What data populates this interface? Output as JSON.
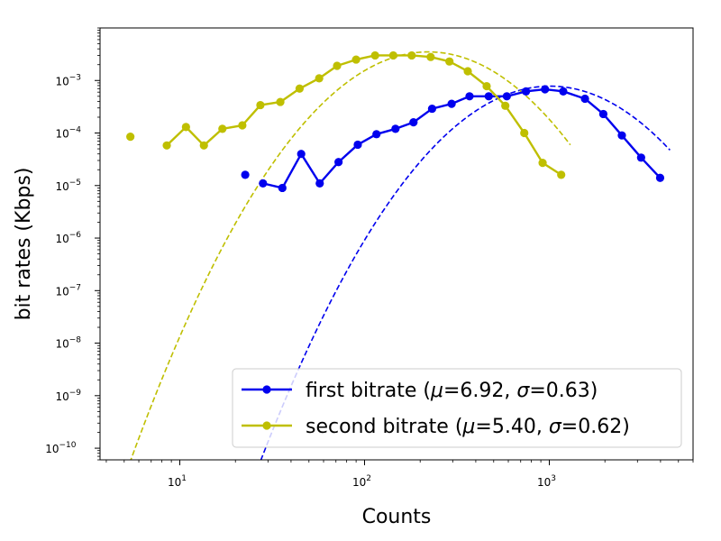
{
  "chart_data": {
    "type": "line",
    "xlabel": "Counts",
    "ylabel": "bit rates (Kbps)",
    "xscale": "log",
    "yscale": "log",
    "xlim": [
      3.7,
      6000
    ],
    "ylim": [
      6e-11,
      0.01
    ],
    "xticks": [
      {
        "value": 10,
        "base": "10",
        "exp": "1"
      },
      {
        "value": 100,
        "base": "10",
        "exp": "2"
      },
      {
        "value": 1000,
        "base": "10",
        "exp": "3"
      }
    ],
    "yticks": [
      {
        "value": 1e-10,
        "base": "10",
        "exp": "−10"
      },
      {
        "value": 1e-09,
        "base": "10",
        "exp": "−9"
      },
      {
        "value": 1e-08,
        "base": "10",
        "exp": "−8"
      },
      {
        "value": 1e-07,
        "base": "10",
        "exp": "−7"
      },
      {
        "value": 1e-06,
        "base": "10",
        "exp": "−6"
      },
      {
        "value": 1e-05,
        "base": "10",
        "exp": "−5"
      },
      {
        "value": 0.0001,
        "base": "10",
        "exp": "−4"
      },
      {
        "value": 0.001,
        "base": "10",
        "exp": "−3"
      }
    ],
    "grid": false,
    "legend_position": "lower-right",
    "series": [
      {
        "name": "first bitrate",
        "legend_prefix": "first bitrate (",
        "mu_text": "=6.92, ",
        "sigma_text": "=0.63)",
        "color": "#0000ee",
        "points": [
          {
            "x": 22.6,
            "y": 1.6e-05
          },
          {
            "x": 28.2,
            "y": 1.1e-05
          },
          {
            "x": 35.9,
            "y": 9e-06
          },
          {
            "x": 45.4,
            "y": 4e-05
          },
          {
            "x": 57.2,
            "y": 1.1e-05
          },
          {
            "x": 72.3,
            "y": 2.8e-05
          },
          {
            "x": 91.9,
            "y": 6e-05
          },
          {
            "x": 116,
            "y": 9.5e-05
          },
          {
            "x": 147,
            "y": 0.00012
          },
          {
            "x": 184,
            "y": 0.00016
          },
          {
            "x": 232,
            "y": 0.00029
          },
          {
            "x": 296,
            "y": 0.00036
          },
          {
            "x": 370,
            "y": 0.0005
          },
          {
            "x": 470,
            "y": 0.0005
          },
          {
            "x": 589,
            "y": 0.0005
          },
          {
            "x": 748,
            "y": 0.00062
          },
          {
            "x": 948,
            "y": 0.00068
          },
          {
            "x": 1190,
            "y": 0.00062
          },
          {
            "x": 1560,
            "y": 0.00045
          },
          {
            "x": 1960,
            "y": 0.00023
          },
          {
            "x": 2470,
            "y": 9e-05
          },
          {
            "x": 3140,
            "y": 3.4e-05
          },
          {
            "x": 3980,
            "y": 1.4e-05
          }
        ],
        "fit": {
          "mu": 6.92,
          "sigma": 0.63,
          "x_range": [
            20,
            4500
          ],
          "peak_y": 0.00078
        }
      },
      {
        "name": "second bitrate",
        "legend_prefix": "second bitrate (",
        "mu_text": "=5.40, ",
        "sigma_text": "=0.62)",
        "color": "#bfbf00",
        "points": [
          {
            "x": 5.4,
            "y": 8.5e-05
          },
          {
            "x": 8.5,
            "y": 5.8e-05
          },
          {
            "x": 10.8,
            "y": 0.00013
          },
          {
            "x": 13.5,
            "y": 5.8e-05
          },
          {
            "x": 17.0,
            "y": 0.00012
          },
          {
            "x": 21.8,
            "y": 0.00014
          },
          {
            "x": 27.3,
            "y": 0.00034
          },
          {
            "x": 35.0,
            "y": 0.00039
          },
          {
            "x": 44.5,
            "y": 0.0007
          },
          {
            "x": 56.8,
            "y": 0.0011
          },
          {
            "x": 71.0,
            "y": 0.0019
          },
          {
            "x": 90.0,
            "y": 0.0025
          },
          {
            "x": 114,
            "y": 0.003
          },
          {
            "x": 143,
            "y": 0.003
          },
          {
            "x": 180,
            "y": 0.003
          },
          {
            "x": 228,
            "y": 0.0028
          },
          {
            "x": 288,
            "y": 0.0023
          },
          {
            "x": 362,
            "y": 0.0015
          },
          {
            "x": 458,
            "y": 0.00078
          },
          {
            "x": 578,
            "y": 0.00033
          },
          {
            "x": 732,
            "y": 0.0001
          },
          {
            "x": 920,
            "y": 2.7e-05
          },
          {
            "x": 1160,
            "y": 1.6e-05
          }
        ],
        "fit": {
          "mu": 5.4,
          "sigma": 0.62,
          "x_range": [
            5,
            1300
          ],
          "peak_y": 0.0035
        }
      }
    ]
  }
}
